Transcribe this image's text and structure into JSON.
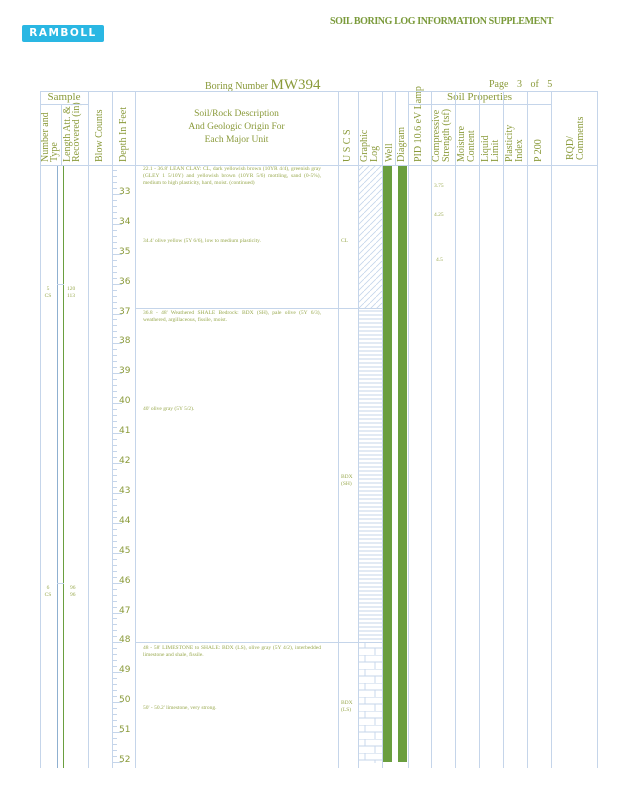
{
  "header": {
    "logo": "RAMBOLL",
    "title": "SOIL BORING LOG INFORMATION SUPPLEMENT",
    "boring_label": "Boring Number",
    "boring_number": "MW394",
    "page_label": "Page",
    "page_current": "3",
    "page_of": "of",
    "page_total": "5"
  },
  "columns": {
    "sample": "Sample",
    "number_type": "Number and Type",
    "length": "Length Att. & Recovered (in)",
    "blow_counts": "Blow Counts",
    "depth": "Depth In Feet",
    "description": [
      "Soil/Rock Description",
      "And Geologic Origin For",
      "Each Major Unit"
    ],
    "uscs": "U S C S",
    "graphic_log": "Graphic Log",
    "well_diagram": "Well Diagram",
    "pid": "PID 10.6 eV Lamp",
    "soil_properties": "Soil Properties",
    "compressive": "Compressive Strength (tsf)",
    "moisture": "Moisture Content",
    "liquid": "Liquid Limit",
    "plasticity": "Plasticity Index",
    "p200": "P 200",
    "rqd": "RQD/ Comments"
  },
  "depth_range": [
    32,
    52
  ],
  "samples": [
    {
      "number": "5",
      "type": "CS",
      "length": "120",
      "recovered": "113"
    },
    {
      "number": "6",
      "type": "CS",
      "length": "96",
      "recovered": "96"
    }
  ],
  "units": [
    {
      "top": 32,
      "bottom": 36.8,
      "graphic": "clay",
      "uscs": "CL",
      "text": "22.1 - 36.8' LEAN CLAY: CL, dark yellowish brown (10YR 4/4), greenish gray (GLEY 1 5/10Y) and yellowish brown (10YR 5/6) mottling, sand (0-5%), medium to high plasticity, hard, moist. (continued)",
      "sub": "34.4' olive yellow (5Y 6/6), low to medium plasticity."
    },
    {
      "top": 36.8,
      "bottom": 48,
      "graphic": "shale",
      "uscs": "BDX (SH)",
      "text": "36.8 - 48' Weathered SHALE Bedrock: BDX (SH), pale olive (5Y 6/3), weathered, argillaceous, fissile, moist.",
      "sub": "40' olive gray (5Y 5/2)."
    },
    {
      "top": 48,
      "bottom": 52,
      "graphic": "limestone",
      "uscs": "BDX (LS)",
      "text": "48 - 58' LIMESTONE to SHALE: BDX (LS), olive gray (5Y 4/2), interbedded limestone and shale, fissile.",
      "sub": "50' - 50.2' limestone, very strong."
    }
  ],
  "compressive_strength": [
    "3.75",
    "4.25",
    "4.5"
  ],
  "colors": {
    "text": "#8a9a3a",
    "grid": "#c5d5ea",
    "well": "#6a9e3f",
    "logo": "#2ab7e3"
  }
}
